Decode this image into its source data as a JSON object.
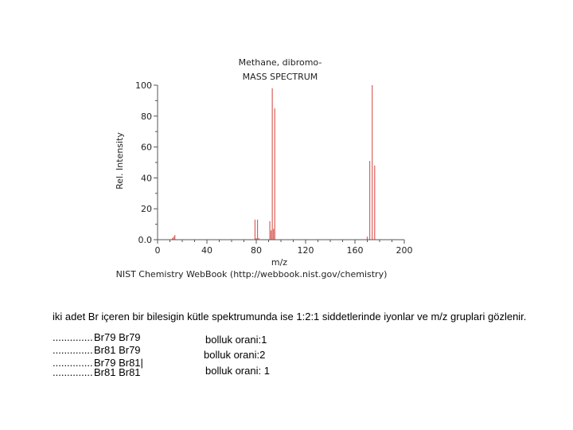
{
  "chart_data": {
    "type": "bar",
    "title": "Methane, dibromo-",
    "subtitle": "MASS SPECTRUM",
    "xlabel": "m/z",
    "ylabel": "Rel. Intensity",
    "xlim": [
      0,
      200
    ],
    "ylim": [
      0,
      100
    ],
    "xticks": [
      "0",
      "40",
      "80",
      "120",
      "160",
      "200"
    ],
    "yticks": [
      "0.0",
      "20",
      "40",
      "60",
      "80",
      "100"
    ],
    "grid": false,
    "credit": "NIST Chemistry WebBook (http://webbook.nist.gov/chemistry)",
    "peaks": [
      {
        "x": 12,
        "y": 1
      },
      {
        "x": 13,
        "y": 2
      },
      {
        "x": 14,
        "y": 3
      },
      {
        "x": 79,
        "y": 13
      },
      {
        "x": 81,
        "y": 13
      },
      {
        "x": 80,
        "y": 1
      },
      {
        "x": 82,
        "y": 1
      },
      {
        "x": 91,
        "y": 12
      },
      {
        "x": 92,
        "y": 6
      },
      {
        "x": 93,
        "y": 98
      },
      {
        "x": 94,
        "y": 7
      },
      {
        "x": 95,
        "y": 85
      },
      {
        "x": 170,
        "y": 2
      },
      {
        "x": 172,
        "y": 51
      },
      {
        "x": 174,
        "y": 100
      },
      {
        "x": 176,
        "y": 48
      }
    ]
  },
  "caption": "iki adet Br içeren bir bilesigin kütle spektrumunda ise 1:2:1 siddetlerinde iyonlar ve m/z gruplari gözlenir.",
  "rows": [
    {
      "dots": "..............",
      "isotopes": "Br79  Br79",
      "ratio": "bolluk orani:1"
    },
    {
      "dots": "..............",
      "isotopes": "Br81  Br79",
      "ratio": "bolluk orani:2"
    },
    {
      "dots": "..............",
      "isotopes": "Br79  Br81|",
      "ratio": ""
    },
    {
      "dots": "..............",
      "isotopes": "Br81  Br81",
      "ratio": "bolluk orani: 1"
    }
  ]
}
